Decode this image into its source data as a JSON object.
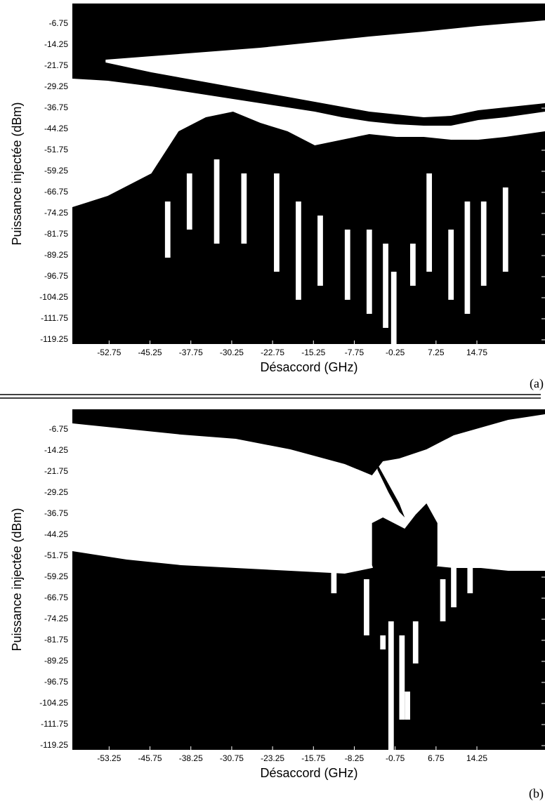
{
  "chart_data": [
    {
      "type": "map",
      "label": "(a)",
      "x_label": "Désaccord (GHz)",
      "y_label": "Puissance injectée (dBm)",
      "background": "#000000",
      "streak_color": "#ffffff",
      "xlim": [
        -59.5,
        27.25
      ],
      "ylim": [
        -120.75,
        0.5
      ],
      "xticks": [
        -52.75,
        -45.25,
        -37.75,
        -30.25,
        -22.75,
        -15.25,
        -7.75,
        -0.25,
        7.25,
        14.75
      ],
      "yticks": [
        -6.75,
        -14.25,
        -21.75,
        -29.25,
        -36.75,
        -44.25,
        -51.75,
        -59.25,
        -66.75,
        -74.25,
        -81.75,
        -89.25,
        -96.75,
        -104.25,
        -111.75,
        -119.25
      ],
      "regions": [
        {
          "color": "#ffffff",
          "x": [
            -53.4,
            -45,
            -35,
            -25,
            -15,
            -5,
            5,
            10,
            15,
            27.25
          ],
          "upper": [
            -19.5,
            -18.25,
            -16.75,
            -15.25,
            -13.25,
            -11.25,
            -9.5,
            -8.5,
            -7.5,
            -5.5
          ],
          "lower": [
            -20.5,
            -24,
            -27.5,
            -31,
            -34.5,
            -38,
            -40,
            -39.5,
            -37.5,
            -35
          ]
        },
        {
          "color": "#ffffff",
          "x": [
            -59.5,
            -53,
            -45,
            -40,
            -35,
            -30,
            -25,
            -20,
            -15,
            -10,
            -5,
            0,
            5,
            10,
            15,
            20,
            27.25
          ],
          "upper": [
            -26.25,
            -27,
            -29,
            -30.5,
            -32,
            -33.5,
            -35,
            -36.5,
            -38,
            -40,
            -41.5,
            -42.5,
            -43,
            -43,
            -41,
            -40,
            -38
          ],
          "lower": [
            -72,
            -68,
            -60,
            -45,
            -40,
            -38,
            -42,
            -45,
            -50,
            -48,
            -46,
            -47,
            -47,
            -48,
            -48,
            -47,
            -45
          ]
        }
      ],
      "streaks": [
        {
          "x": -42,
          "top": -70,
          "bottom": -90
        },
        {
          "x": -38,
          "top": -60,
          "bottom": -80
        },
        {
          "x": -33,
          "top": -55,
          "bottom": -85
        },
        {
          "x": -28,
          "top": -60,
          "bottom": -85
        },
        {
          "x": -22,
          "top": -60,
          "bottom": -95
        },
        {
          "x": -18,
          "top": -70,
          "bottom": -105
        },
        {
          "x": -14,
          "top": -75,
          "bottom": -100
        },
        {
          "x": -9,
          "top": -80,
          "bottom": -105
        },
        {
          "x": -5,
          "top": -80,
          "bottom": -110
        },
        {
          "x": -2,
          "top": -85,
          "bottom": -115
        },
        {
          "x": -0.5,
          "top": -95,
          "bottom": -121
        },
        {
          "x": 3,
          "top": -85,
          "bottom": -100
        },
        {
          "x": 6,
          "top": -60,
          "bottom": -95
        },
        {
          "x": 10,
          "top": -80,
          "bottom": -105
        },
        {
          "x": 13,
          "top": -70,
          "bottom": -110
        },
        {
          "x": 16,
          "top": -70,
          "bottom": -100
        },
        {
          "x": 20,
          "top": -65,
          "bottom": -95
        }
      ]
    },
    {
      "type": "map",
      "label": "(b)",
      "x_label": "Désaccord (GHz)",
      "y_label": "Puissance injectée (dBm)",
      "background": "#000000",
      "streak_color": "#ffffff",
      "xlim": [
        -60,
        26.75
      ],
      "ylim": [
        -120.75,
        0.5
      ],
      "xticks": [
        -53.25,
        -45.75,
        -38.25,
        -30.75,
        -23.25,
        -15.75,
        -8.25,
        -0.75,
        6.75,
        14.25
      ],
      "yticks": [
        -6.75,
        -14.25,
        -21.75,
        -29.25,
        -36.75,
        -44.25,
        -51.75,
        -59.25,
        -66.75,
        -74.25,
        -81.75,
        -89.25,
        -96.75,
        -104.25,
        -111.75,
        -119.25
      ],
      "regions": [
        {
          "color": "#ffffff",
          "x": [
            -60,
            -50,
            -40,
            -30,
            -20,
            -10,
            -5,
            -3,
            0,
            5,
            10,
            15,
            20,
            26.75
          ],
          "upper": [
            -4.5,
            -6.5,
            -8.5,
            -10,
            -13.75,
            -19,
            -23,
            -18,
            -17,
            -13.75,
            -8.75,
            -6,
            -3.25,
            -1.25
          ],
          "lower": [
            -50,
            -53,
            -55,
            -56,
            -57,
            -58,
            -56,
            -55,
            -55,
            -55,
            -56,
            -56,
            -57,
            -57
          ]
        },
        {
          "color": "#000000",
          "x": [
            -4,
            -2,
            0,
            1
          ],
          "upper": [
            -19,
            -26,
            -33,
            -38
          ],
          "lower": [
            -21,
            -29,
            -36,
            -38
          ]
        },
        {
          "color": "#000000",
          "x": [
            -5,
            -3,
            -1,
            1,
            3,
            5,
            7
          ],
          "upper": [
            -40,
            -38,
            -40,
            -42,
            -37,
            -33,
            -40
          ],
          "lower": [
            -55,
            -65,
            -75,
            -70,
            -65,
            -60,
            -55
          ]
        }
      ],
      "streaks": [
        {
          "x": -1.5,
          "top": -75,
          "bottom": -121
        },
        {
          "x": 0.5,
          "top": -80,
          "bottom": -110
        },
        {
          "x": 1.5,
          "top": -100,
          "bottom": -110
        },
        {
          "x": -3,
          "top": -80,
          "bottom": -85
        },
        {
          "x": 3,
          "top": -75,
          "bottom": -90
        },
        {
          "x": -6,
          "top": -60,
          "bottom": -80
        },
        {
          "x": 8,
          "top": -60,
          "bottom": -75
        },
        {
          "x": 10,
          "top": -55,
          "bottom": -70
        },
        {
          "x": 13,
          "top": -55,
          "bottom": -65
        },
        {
          "x": -12,
          "top": -55,
          "bottom": -65
        }
      ]
    }
  ]
}
